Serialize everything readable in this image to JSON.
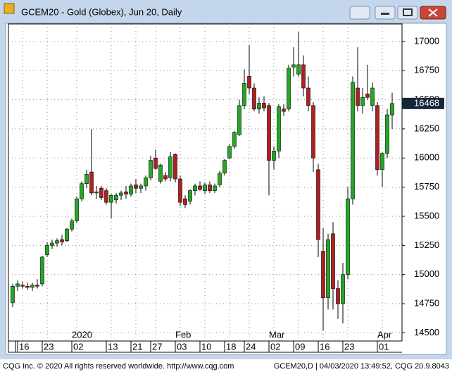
{
  "chart_data": {
    "type": "candlestick",
    "title": "GCEM20 - Gold (Globex), Jun 20, Daily",
    "footer_left": "CQG Inc. © 2020 All rights reserved worldwide. http://www.cqg.com",
    "footer_right": "GCEM20,D | 04/03/2020 13:49:52, CQG 20.9.8043",
    "month_labels": [
      "2020",
      "Feb",
      "Mar",
      "Apr"
    ],
    "categories": [
      null,
      null,
      "16",
      null,
      null,
      null,
      null,
      "23",
      null,
      null,
      null,
      null,
      null,
      "02",
      null,
      null,
      null,
      null,
      null,
      null,
      "13",
      null,
      null,
      null,
      null,
      "21",
      null,
      null,
      null,
      "27",
      null,
      null,
      null,
      null,
      "03",
      null,
      null,
      null,
      null,
      "10",
      null,
      null,
      null,
      null,
      "18",
      null,
      null,
      null,
      "24",
      null,
      null,
      null,
      null,
      "02",
      null,
      null,
      null,
      null,
      "09",
      null,
      null,
      null,
      null,
      "16",
      null,
      null,
      null,
      null,
      "23",
      null,
      null,
      null,
      null,
      null,
      null,
      "01",
      null,
      null
    ],
    "open": [
      14760,
      14900,
      14910,
      14900,
      14890,
      14910,
      14920,
      15170,
      15250,
      15270,
      15300,
      15290,
      15390,
      15460,
      15650,
      15780,
      15880,
      15700,
      15740,
      15720,
      15620,
      15640,
      15680,
      15710,
      15690,
      15770,
      15740,
      15760,
      15830,
      16000,
      15800,
      15850,
      15830,
      16030,
      15820,
      15650,
      15630,
      15720,
      15760,
      15720,
      15770,
      15720,
      15770,
      15870,
      16000,
      16100,
      16200,
      16450,
      16700,
      16600,
      16420,
      16470,
      16450,
      15980,
      16060,
      16420,
      16420,
      16780,
      16720,
      16800,
      16600,
      16450,
      15900,
      15200,
      14800,
      15350,
      14880,
      14750,
      15000,
      15650,
      16600,
      16450,
      16550,
      16450,
      16450,
      15900,
      16040,
      16370
    ],
    "high": [
      14920,
      14950,
      14940,
      14930,
      14930,
      14960,
      15160,
      15280,
      15300,
      15310,
      15340,
      15400,
      15480,
      15670,
      15800,
      15900,
      16250,
      15760,
      15760,
      15740,
      15690,
      15700,
      15720,
      15760,
      15780,
      15820,
      15780,
      15850,
      16020,
      16070,
      15950,
      15880,
      16050,
      16040,
      15850,
      15680,
      15730,
      15780,
      15800,
      15790,
      15800,
      15780,
      15890,
      15990,
      16120,
      16230,
      16500,
      16760,
      16970,
      16640,
      16520,
      16530,
      16470,
      16100,
      16460,
      16460,
      16800,
      16950,
      17080,
      16880,
      16700,
      16480,
      15950,
      15400,
      15350,
      15450,
      14950,
      15100,
      15750,
      16700,
      16950,
      16600,
      16800,
      16650,
      16480,
      16050,
      16420,
      16560
    ],
    "low": [
      14720,
      14860,
      14880,
      14870,
      14860,
      14880,
      14900,
      15150,
      15220,
      15240,
      15250,
      15280,
      15370,
      15440,
      15630,
      15740,
      15680,
      15650,
      15640,
      15600,
      15480,
      15610,
      15640,
      15650,
      15670,
      15700,
      15700,
      15720,
      15810,
      15900,
      15780,
      15800,
      15800,
      15790,
      15590,
      15570,
      15600,
      15680,
      15720,
      15690,
      15700,
      15700,
      15750,
      15850,
      15990,
      16080,
      16190,
      16420,
      16550,
      16400,
      16380,
      16400,
      15680,
      15900,
      16000,
      16360,
      16400,
      16700,
      16700,
      16530,
      16400,
      15880,
      15150,
      14520,
      14700,
      14700,
      14620,
      14580,
      14960,
      15600,
      16400,
      16380,
      16500,
      16400,
      15850,
      15750,
      16000,
      16250
    ],
    "close": [
      14900,
      14920,
      14900,
      14890,
      14910,
      14900,
      15150,
      15250,
      15270,
      15290,
      15280,
      15390,
      15460,
      15650,
      15780,
      15860,
      15700,
      15710,
      15660,
      15620,
      15680,
      15680,
      15700,
      15690,
      15760,
      15740,
      15760,
      15830,
      15980,
      15910,
      15940,
      15820,
      16010,
      15820,
      15620,
      15600,
      15720,
      15760,
      15730,
      15770,
      15720,
      15760,
      15870,
      15980,
      16100,
      16220,
      16450,
      16640,
      16600,
      16420,
      16470,
      16430,
      15980,
      16060,
      16440,
      16400,
      16770,
      16800,
      16800,
      16600,
      16450,
      16000,
      15300,
      14800,
      15300,
      14880,
      14750,
      15000,
      15650,
      16650,
      16450,
      16520,
      16520,
      16600,
      15900,
      16040,
      16370,
      16468
    ],
    "up_color": "#22a822",
    "down_color": "#b02020",
    "ylim": [
      14430,
      17150
    ],
    "yticks": [
      14500,
      14750,
      15000,
      15250,
      15500,
      15750,
      16000,
      16250,
      16500,
      16750,
      17000
    ],
    "grid": true
  }
}
